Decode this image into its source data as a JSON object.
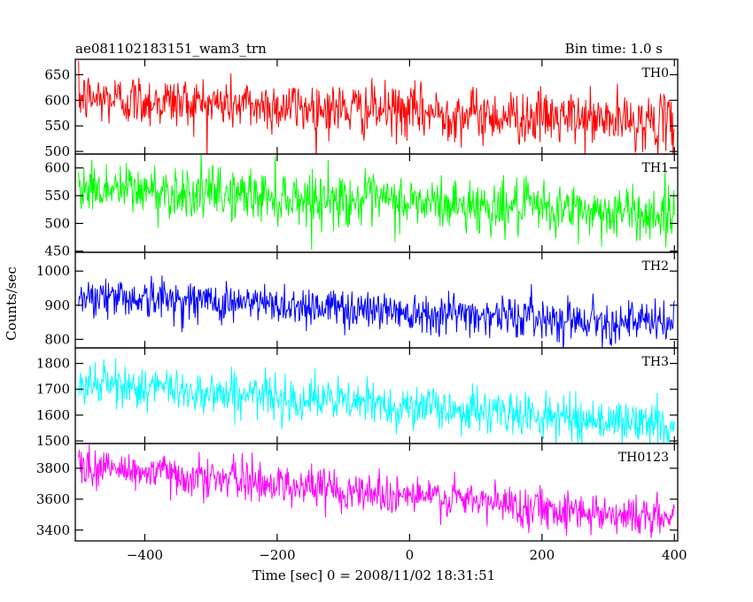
{
  "chart_data": {
    "type": "line",
    "title": "ae081102183151_wam3_trn",
    "subtitle": "Bin time: 1.0 s",
    "xlabel": "Time [sec] 0 = 2008/11/02 18:31:51",
    "ylabel": "Counts/sec",
    "xlim": [
      -505,
      405
    ],
    "x_ticks": [
      -400,
      -200,
      0,
      200,
      400
    ],
    "x_step": 1.0,
    "grid": false,
    "panels": [
      {
        "name": "TH0",
        "color": "#ff0000",
        "ylim": [
          495,
          680
        ],
        "y_ticks": [
          500,
          550,
          600,
          650
        ],
        "x_range": [
          -500,
          400
        ],
        "trend": {
          "start": 605,
          "end": 555
        },
        "noise_sd": 26
      },
      {
        "name": "TH1",
        "color": "#00ff00",
        "ylim": [
          448,
          625
        ],
        "y_ticks": [
          450,
          500,
          550,
          600
        ],
        "x_range": [
          -500,
          400
        ],
        "trend": {
          "start": 565,
          "end": 515
        },
        "noise_sd": 24
      },
      {
        "name": "TH2",
        "color": "#0000ff",
        "ylim": [
          775,
          1055
        ],
        "y_ticks": [
          800,
          900,
          1000
        ],
        "x_range": [
          -500,
          400
        ],
        "trend": {
          "start": 930,
          "end": 845
        },
        "noise_sd": 30
      },
      {
        "name": "TH3",
        "color": "#00ffff",
        "ylim": [
          1490,
          1860
        ],
        "y_ticks": [
          1500,
          1600,
          1700,
          1800
        ],
        "x_range": [
          -500,
          400
        ],
        "trend": {
          "start": 1725,
          "end": 1560
        },
        "noise_sd": 42
      },
      {
        "name": "TH0123",
        "color": "#ff00ff",
        "ylim": [
          3330,
          3960
        ],
        "y_ticks": [
          3400,
          3600,
          3800
        ],
        "x_range": [
          -500,
          400
        ],
        "trend": {
          "start": 3815,
          "end": 3470
        },
        "noise_sd": 65
      }
    ]
  }
}
